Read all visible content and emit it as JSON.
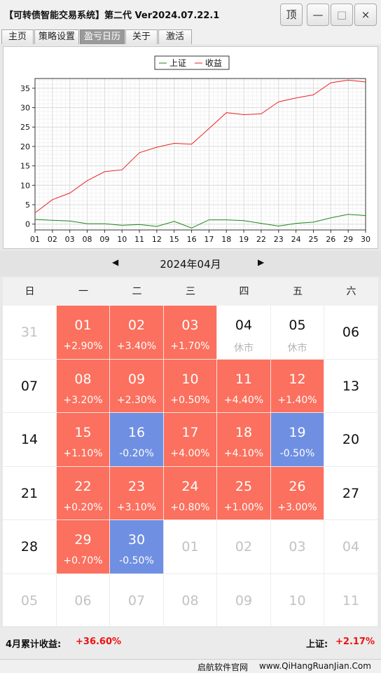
{
  "window": {
    "title": "【可转债智能交易系统】第二代 Ver2024.07.22.1",
    "btn_top": "顶",
    "btn_min": "—",
    "btn_max": "□",
    "btn_close": "×"
  },
  "tabs": [
    {
      "label": "主页"
    },
    {
      "label": "策略设置"
    },
    {
      "label": "盈亏日历",
      "active": true
    },
    {
      "label": "关于"
    },
    {
      "label": "激活"
    }
  ],
  "chart_data": {
    "type": "line",
    "x": [
      "01",
      "02",
      "03",
      "08",
      "09",
      "10",
      "11",
      "12",
      "15",
      "16",
      "17",
      "18",
      "19",
      "22",
      "23",
      "24",
      "25",
      "26",
      "29",
      "30"
    ],
    "series": [
      {
        "name": "上证",
        "color": "#1a8a1a",
        "values": [
          1.2,
          1.0,
          0.8,
          0.1,
          0.1,
          -0.3,
          -0.1,
          -0.6,
          0.7,
          -1.0,
          1.1,
          1.1,
          0.9,
          0.2,
          -0.5,
          0.2,
          0.5,
          1.6,
          2.5,
          2.2
        ]
      },
      {
        "name": "收益",
        "color": "#ee2222",
        "values": [
          2.9,
          6.3,
          8.0,
          11.2,
          13.5,
          14.0,
          18.4,
          19.8,
          20.8,
          20.6,
          24.6,
          28.7,
          28.2,
          28.4,
          31.5,
          32.5,
          33.3,
          36.4,
          37.1,
          36.6
        ]
      }
    ],
    "ylim": [
      -1.5,
      37.5
    ],
    "yticks": [
      0,
      5,
      10,
      15,
      20,
      25,
      30,
      35
    ],
    "grid": true,
    "legend": "top-center"
  },
  "calendar": {
    "month_title": "2024年04月",
    "prev": "◀",
    "next": "▶",
    "weekdays": [
      "日",
      "一",
      "二",
      "三",
      "四",
      "五",
      "六"
    ],
    "rows": [
      [
        {
          "d": "31",
          "t": "faded"
        },
        {
          "d": "01",
          "p": "+2.90%",
          "t": "up"
        },
        {
          "d": "02",
          "p": "+3.40%",
          "t": "up"
        },
        {
          "d": "03",
          "p": "+1.70%",
          "t": "up"
        },
        {
          "d": "04",
          "p": "休市",
          "t": "plain"
        },
        {
          "d": "05",
          "p": "休市",
          "t": "plain"
        },
        {
          "d": "06",
          "t": "plain"
        }
      ],
      [
        {
          "d": "07",
          "t": "plain"
        },
        {
          "d": "08",
          "p": "+3.20%",
          "t": "up"
        },
        {
          "d": "09",
          "p": "+2.30%",
          "t": "up"
        },
        {
          "d": "10",
          "p": "+0.50%",
          "t": "up"
        },
        {
          "d": "11",
          "p": "+4.40%",
          "t": "up"
        },
        {
          "d": "12",
          "p": "+1.40%",
          "t": "up"
        },
        {
          "d": "13",
          "t": "plain"
        }
      ],
      [
        {
          "d": "14",
          "t": "plain"
        },
        {
          "d": "15",
          "p": "+1.10%",
          "t": "up"
        },
        {
          "d": "16",
          "p": "-0.20%",
          "t": "down"
        },
        {
          "d": "17",
          "p": "+4.00%",
          "t": "up"
        },
        {
          "d": "18",
          "p": "+4.10%",
          "t": "up"
        },
        {
          "d": "19",
          "p": "-0.50%",
          "t": "down"
        },
        {
          "d": "20",
          "t": "plain"
        }
      ],
      [
        {
          "d": "21",
          "t": "plain"
        },
        {
          "d": "22",
          "p": "+0.20%",
          "t": "up"
        },
        {
          "d": "23",
          "p": "+3.10%",
          "t": "up"
        },
        {
          "d": "24",
          "p": "+0.80%",
          "t": "up"
        },
        {
          "d": "25",
          "p": "+1.00%",
          "t": "up"
        },
        {
          "d": "26",
          "p": "+3.00%",
          "t": "up"
        },
        {
          "d": "27",
          "t": "plain"
        }
      ],
      [
        {
          "d": "28",
          "t": "plain"
        },
        {
          "d": "29",
          "p": "+0.70%",
          "t": "up"
        },
        {
          "d": "30",
          "p": "-0.50%",
          "t": "down"
        },
        {
          "d": "01",
          "t": "faded"
        },
        {
          "d": "02",
          "t": "faded"
        },
        {
          "d": "03",
          "t": "faded"
        },
        {
          "d": "04",
          "t": "faded"
        }
      ],
      [
        {
          "d": "05",
          "t": "faded"
        },
        {
          "d": "06",
          "t": "faded"
        },
        {
          "d": "07",
          "t": "faded"
        },
        {
          "d": "08",
          "t": "faded"
        },
        {
          "d": "09",
          "t": "faded"
        },
        {
          "d": "10",
          "t": "faded"
        },
        {
          "d": "11",
          "t": "faded"
        }
      ]
    ]
  },
  "summary": {
    "month_label": "4月累计收益:",
    "month_value": "+36.60%",
    "index_label": "上证:",
    "index_value": "+2.17%"
  },
  "status": {
    "site_name": "启航软件官网",
    "site_url": "www.QiHangRuanJian.Com"
  },
  "colors": {
    "profit": "#fb705e",
    "loss": "#6f8fe2",
    "value_red": "#ee1111"
  }
}
